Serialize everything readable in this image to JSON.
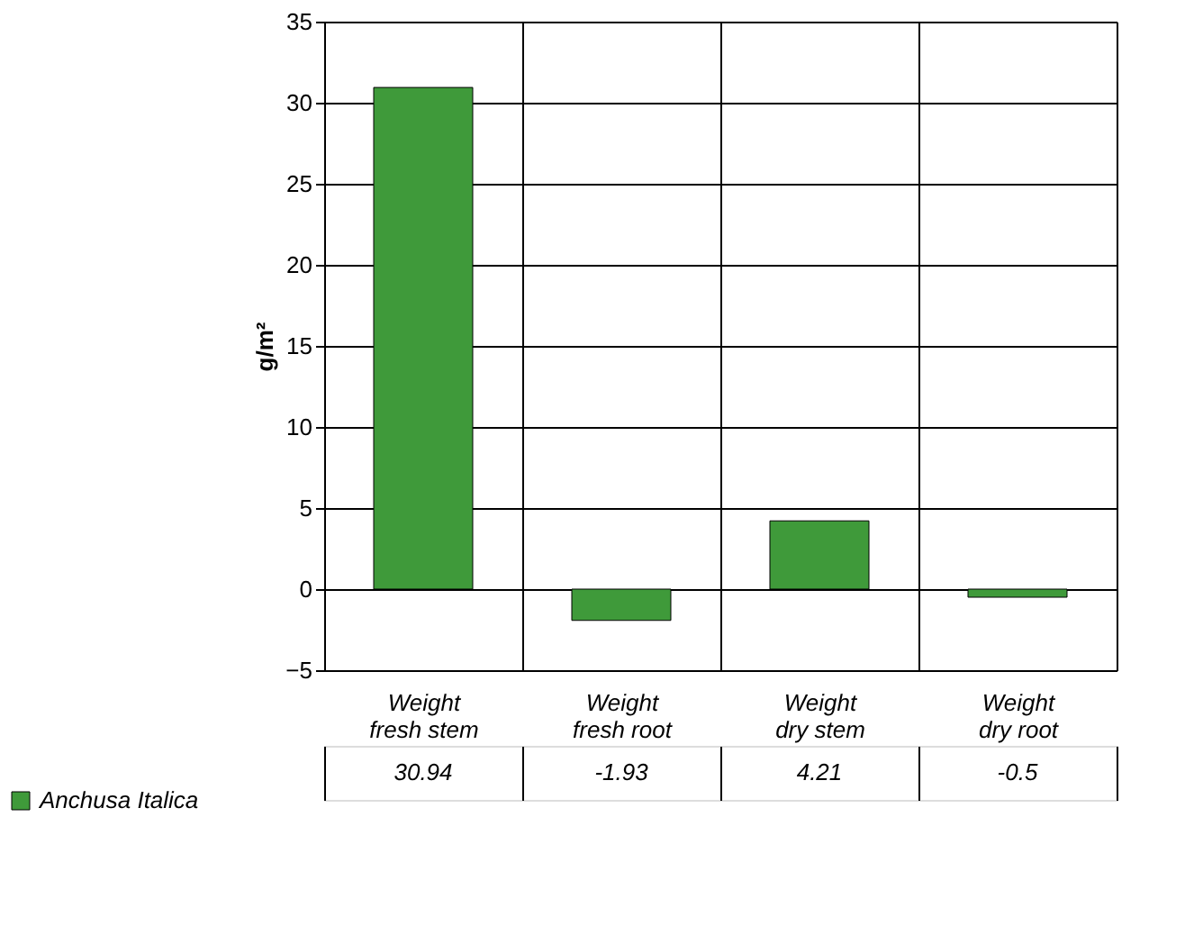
{
  "chart_data": {
    "type": "bar",
    "ylabel": "g/m²",
    "categories": [
      "Weight fresh stem",
      "Weight fresh root",
      "Weight dry stem",
      "Weight dry root"
    ],
    "series": [
      {
        "name": "Anchusa Italica",
        "color": "#3f9a3a",
        "values": [
          30.94,
          -1.93,
          4.21,
          -0.5
        ]
      }
    ],
    "ylim": [
      -5,
      35
    ],
    "yticks": [
      -5,
      0,
      5,
      10,
      15,
      20,
      25,
      30,
      35
    ],
    "grid": "y",
    "legend": "bottom left",
    "data_labels": true
  }
}
